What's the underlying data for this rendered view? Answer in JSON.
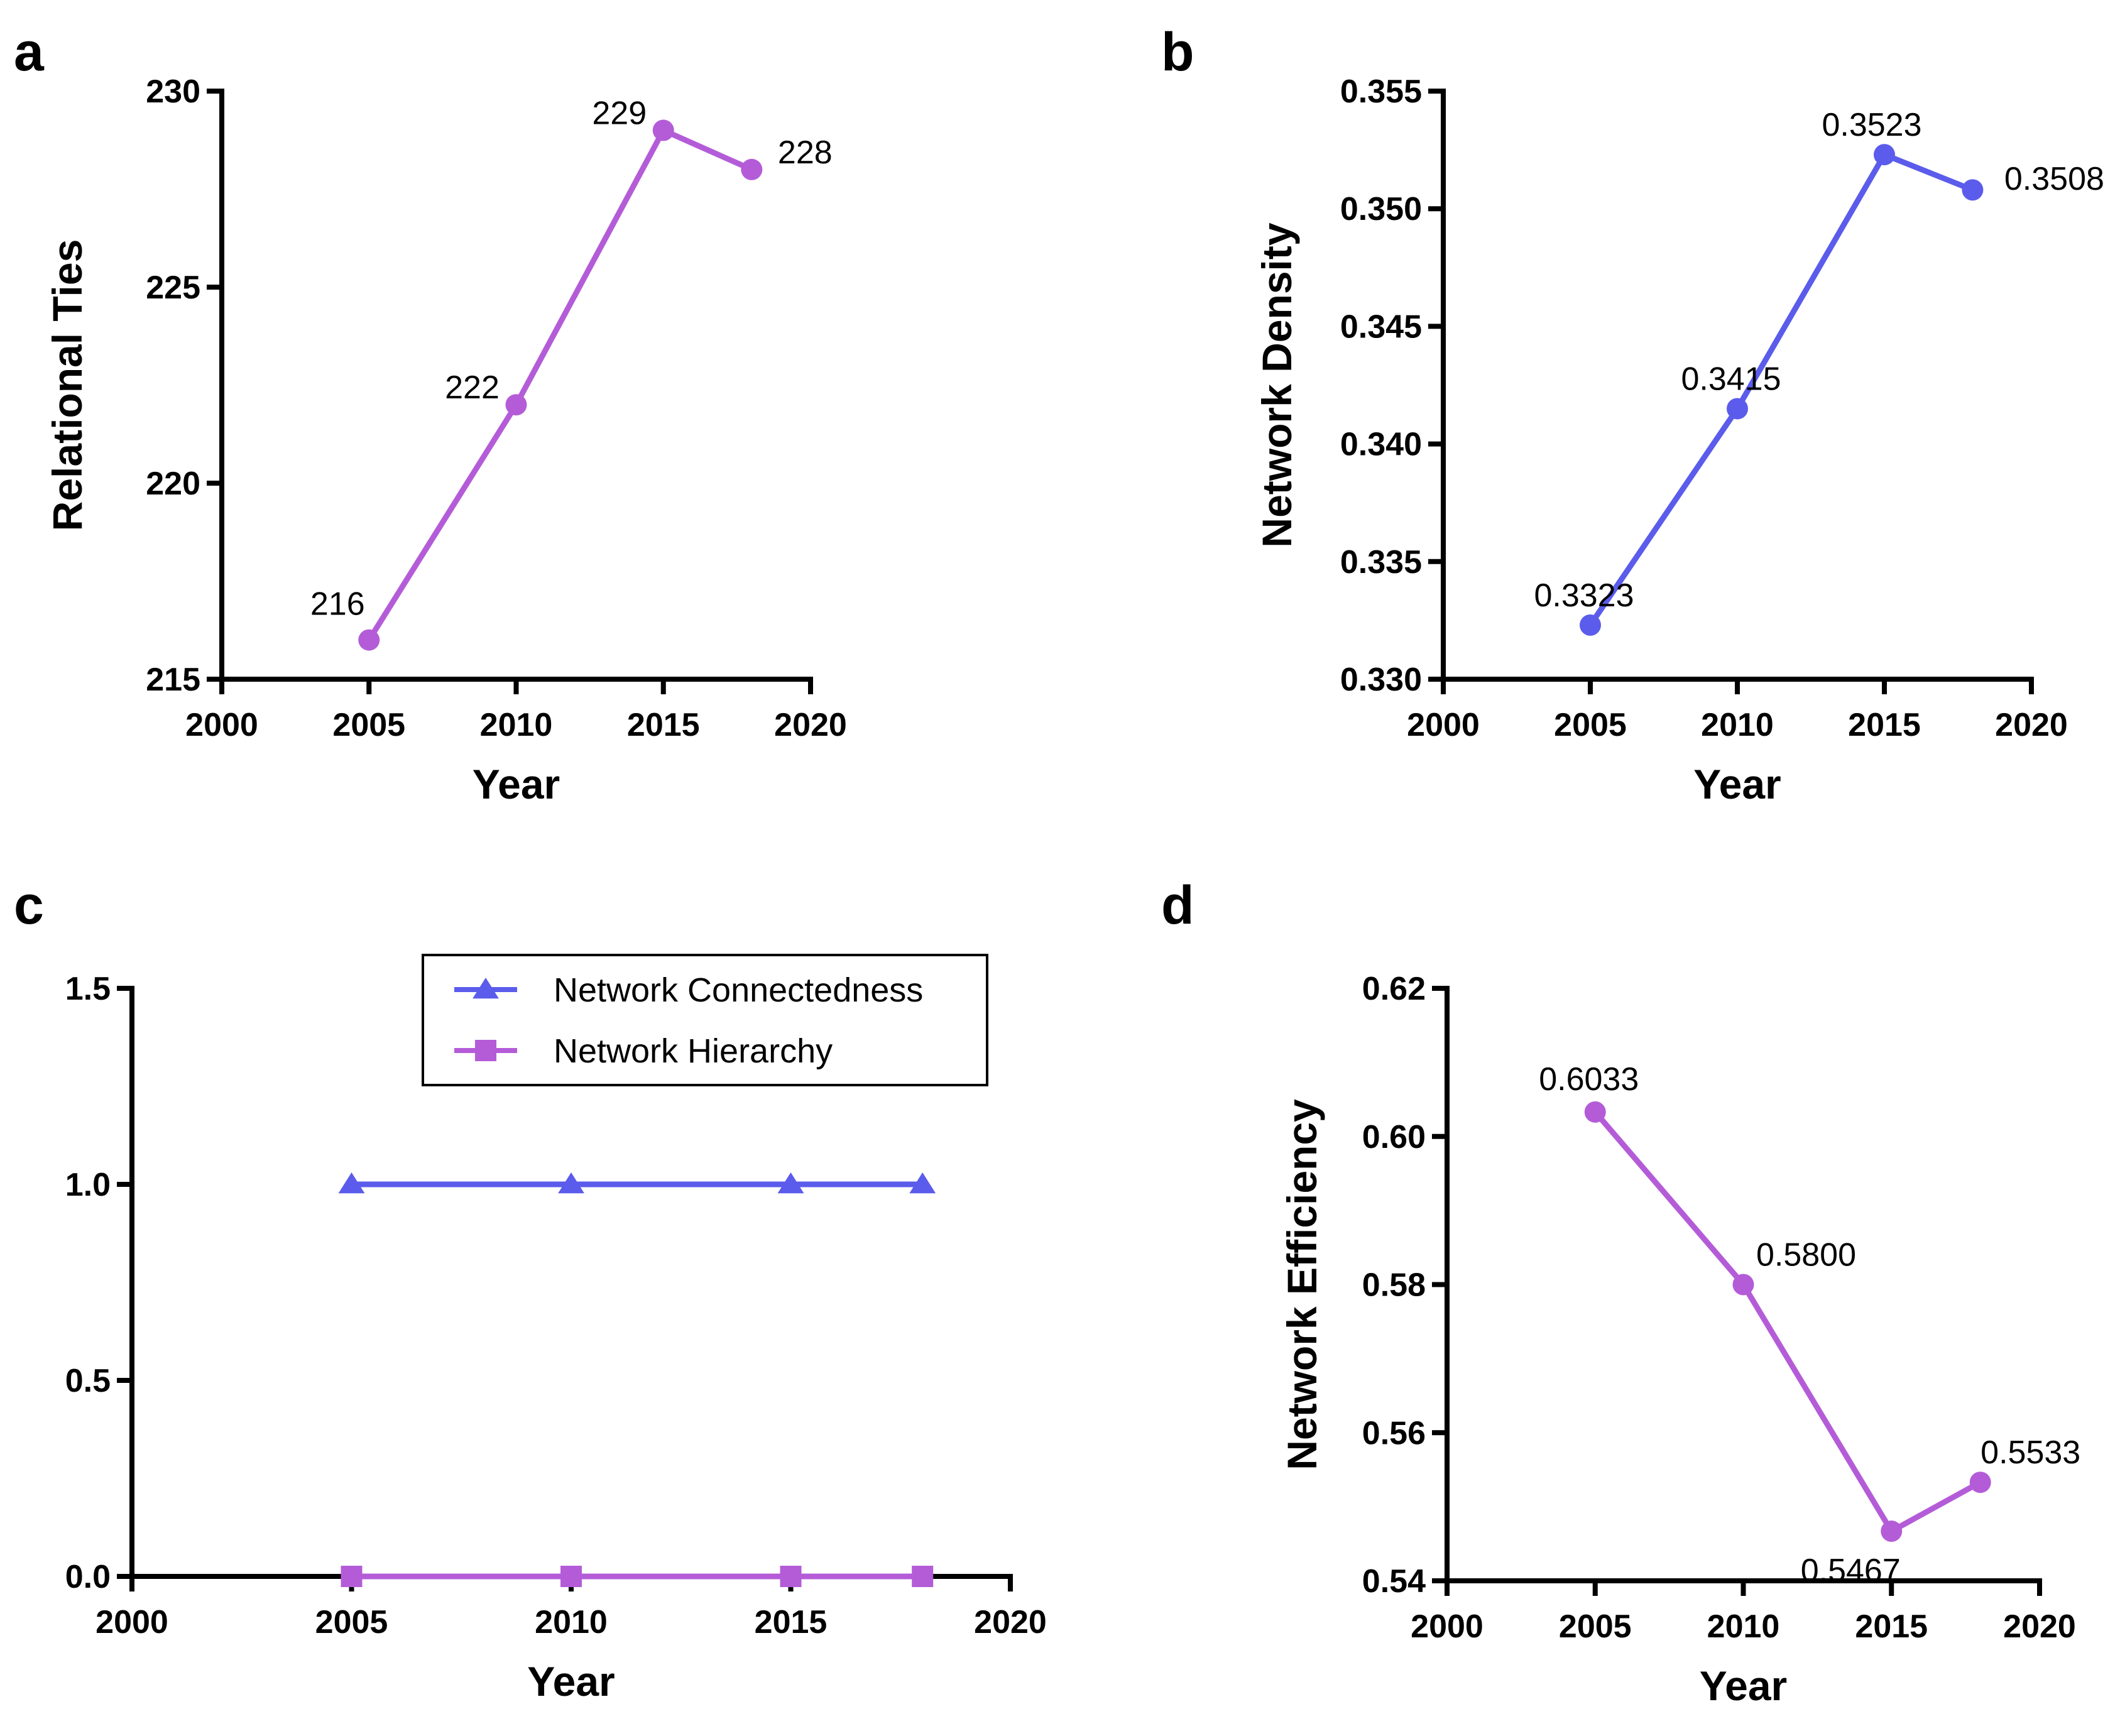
{
  "chart_data": [
    {
      "panel": "a",
      "type": "line",
      "x": [
        2005,
        2010,
        2015,
        2018
      ],
      "series": [
        {
          "name": "Relational Ties",
          "color": "#B45CD8",
          "marker": "circle",
          "values": [
            216,
            222,
            229,
            228
          ],
          "labels": [
            "216",
            "222",
            "229",
            "228"
          ]
        }
      ],
      "xlabel": "Year",
      "ylabel": "Relational Ties",
      "xlim": [
        2000,
        2020
      ],
      "ylim": [
        215,
        230
      ],
      "xticks": [
        2000,
        2005,
        2010,
        2015,
        2020
      ],
      "xtick_labels": [
        "2000",
        "2005",
        "2010",
        "2015",
        "2020"
      ],
      "yticks": [
        215,
        220,
        225,
        230
      ],
      "ytick_labels": [
        "215",
        "220",
        "225",
        "230"
      ],
      "grid": false
    },
    {
      "panel": "b",
      "type": "line",
      "x": [
        2005,
        2010,
        2015,
        2018
      ],
      "series": [
        {
          "name": "Network Density",
          "color": "#5B5CEB",
          "marker": "circle",
          "values": [
            0.3323,
            0.3415,
            0.3523,
            0.3508
          ],
          "labels": [
            "0.3323",
            "0.3415",
            "0.3523",
            "0.3508"
          ]
        }
      ],
      "xlabel": "Year",
      "ylabel": "Network Density",
      "xlim": [
        2000,
        2020
      ],
      "ylim": [
        0.33,
        0.355
      ],
      "xticks": [
        2000,
        2005,
        2010,
        2015,
        2020
      ],
      "xtick_labels": [
        "2000",
        "2005",
        "2010",
        "2015",
        "2020"
      ],
      "yticks": [
        0.33,
        0.335,
        0.34,
        0.345,
        0.35,
        0.355
      ],
      "ytick_labels": [
        "0.330",
        "0.335",
        "0.340",
        "0.345",
        "0.350",
        "0.355"
      ],
      "grid": false
    },
    {
      "panel": "c",
      "type": "line",
      "x": [
        2005,
        2010,
        2015,
        2018
      ],
      "series": [
        {
          "name": "Network Connectedness",
          "color": "#5B5CEB",
          "marker": "triangle",
          "values": [
            1,
            1,
            1,
            1
          ],
          "labels": []
        },
        {
          "name": "Network Hierarchy",
          "color": "#B45CD8",
          "marker": "square",
          "values": [
            0,
            0,
            0,
            0
          ],
          "labels": []
        }
      ],
      "xlabel": "Year",
      "ylabel": "",
      "xlim": [
        2000,
        2020
      ],
      "ylim": [
        0,
        1.5
      ],
      "xticks": [
        2000,
        2005,
        2010,
        2015,
        2020
      ],
      "xtick_labels": [
        "2000",
        "2005",
        "2010",
        "2015",
        "2020"
      ],
      "yticks": [
        0,
        0.5,
        1.0,
        1.5
      ],
      "ytick_labels": [
        "0.0",
        "0.5",
        "1.0",
        "1.5"
      ],
      "legend": "top-right",
      "grid": false
    },
    {
      "panel": "d",
      "type": "line",
      "x": [
        2005,
        2010,
        2015,
        2018
      ],
      "series": [
        {
          "name": "Network Efficiency",
          "color": "#B45CD8",
          "marker": "circle",
          "values": [
            0.6033,
            0.58,
            0.5467,
            0.5533
          ],
          "labels": [
            "0.6033",
            "0.5800",
            "0.5467",
            "0.5533"
          ]
        }
      ],
      "xlabel": "Year",
      "ylabel": "Network Efficiency",
      "xlim": [
        2000,
        2020
      ],
      "ylim": [
        0.54,
        0.62
      ],
      "xticks": [
        2000,
        2005,
        2010,
        2015,
        2020
      ],
      "xtick_labels": [
        "2000",
        "2005",
        "2010",
        "2015",
        "2020"
      ],
      "yticks": [
        0.54,
        0.56,
        0.58,
        0.6,
        0.62
      ],
      "ytick_labels": [
        "0.54",
        "0.56",
        "0.58",
        "0.60",
        "0.62"
      ],
      "grid": false
    }
  ]
}
